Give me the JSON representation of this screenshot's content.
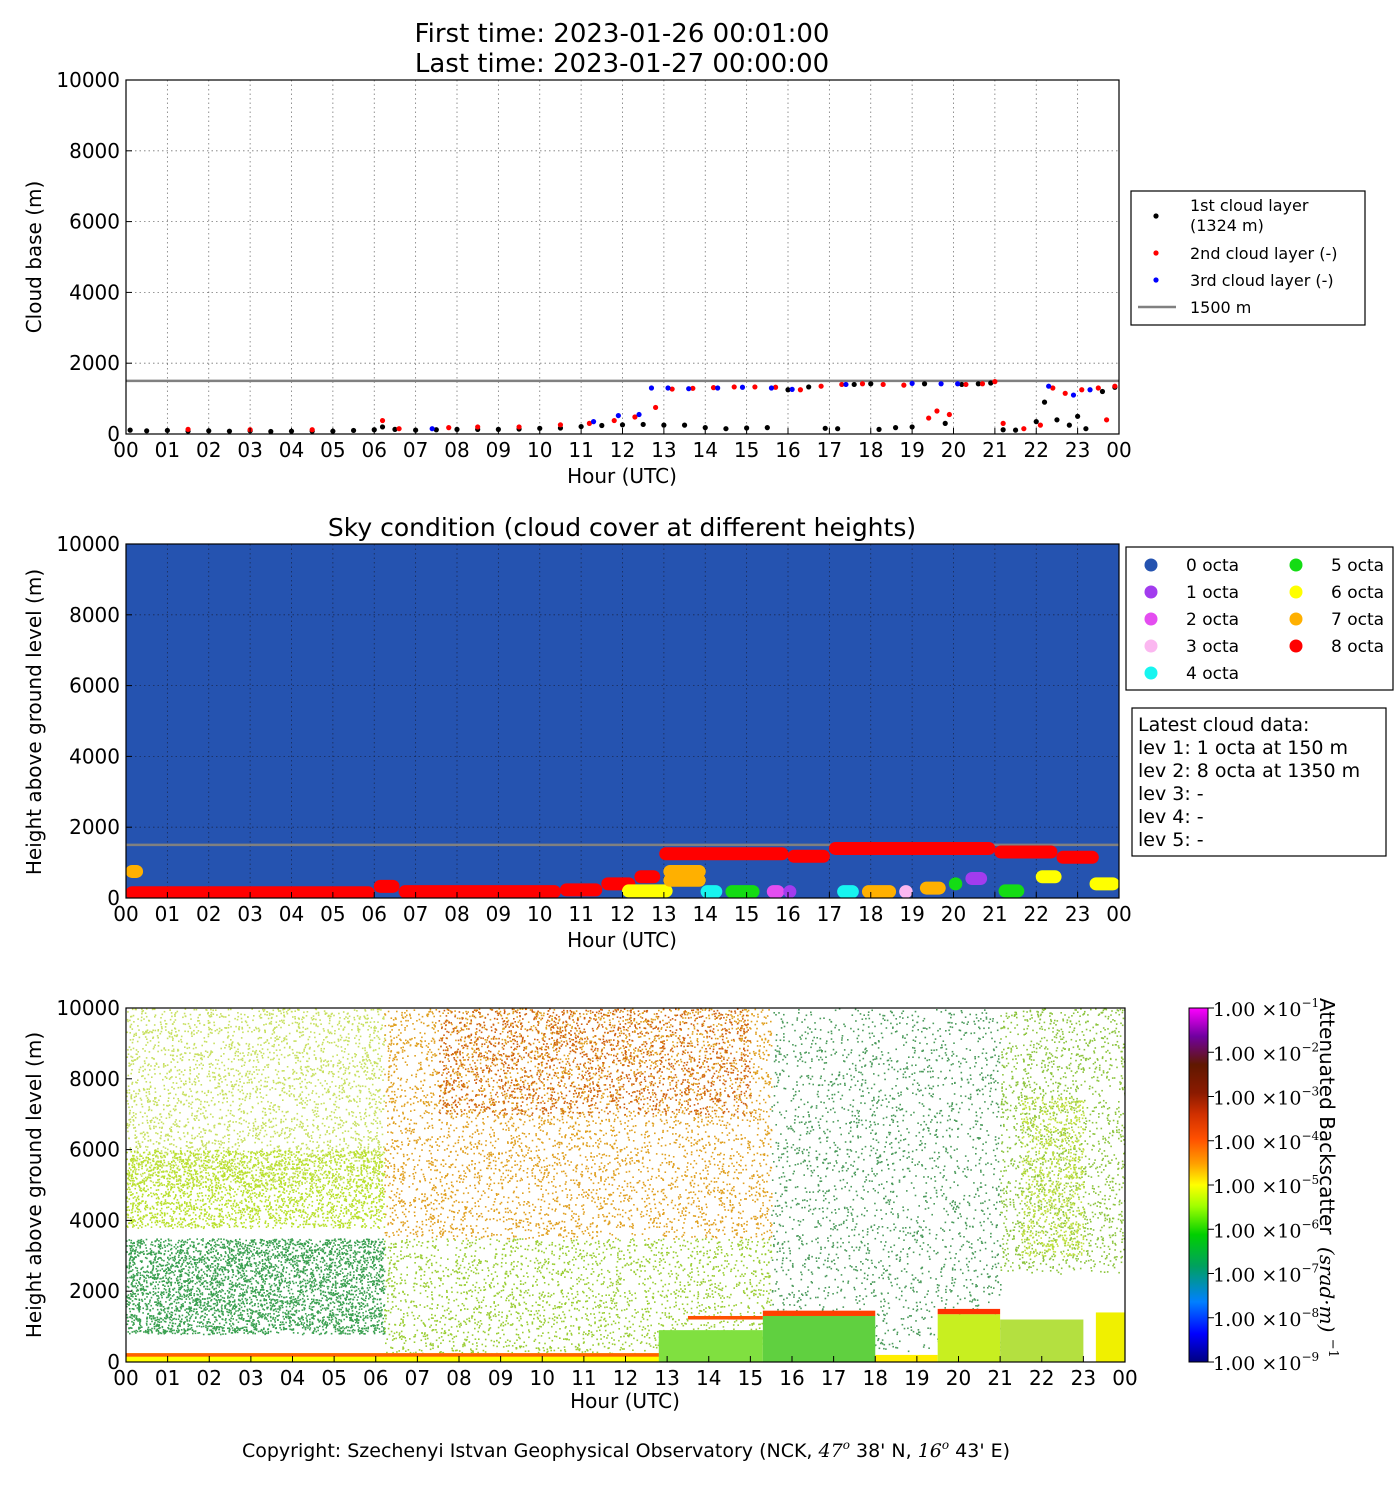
{
  "header": {
    "first_time": "First time: 2023-01-26 00:01:00",
    "last_time": "Last time: 2023-01-27 00:00:00"
  },
  "hour_ticks": [
    "00",
    "01",
    "02",
    "03",
    "04",
    "05",
    "06",
    "07",
    "08",
    "09",
    "10",
    "11",
    "12",
    "13",
    "14",
    "15",
    "16",
    "17",
    "18",
    "19",
    "20",
    "21",
    "22",
    "23",
    "00"
  ],
  "copyright": {
    "prefix": "Copyright: Szechenyi Istvan Geophysical Observatory (NCK, ",
    "lat_deg": "47",
    "lat_rest": " 38' N, ",
    "lon_deg": "16",
    "lon_rest": " 43' E)",
    "degree_mark": "o"
  },
  "colors": {
    "first_layer": "#000000",
    "second_layer": "#ff0000",
    "third_layer": "#0000ff",
    "threshold_line": "#808080",
    "sky_background": "#2553b0",
    "octa": [
      "#2553b0",
      "#a23cee",
      "#e44df0",
      "#fbb7f0",
      "#17f5f0",
      "#14dc14",
      "#ffff00",
      "#ffb000",
      "#ff0000"
    ]
  },
  "chart_data": [
    {
      "type": "scatter",
      "title": "",
      "xlabel": "Hour (UTC)",
      "ylabel": "Cloud base (m)",
      "xlim": [
        0,
        24
      ],
      "ylim": [
        0,
        10000
      ],
      "yticks": [
        0,
        2000,
        4000,
        6000,
        8000,
        10000
      ],
      "grid": true,
      "legend_position": "right",
      "reference_line": {
        "y": 1500,
        "label": "1500 m"
      },
      "series": [
        {
          "name": "1st cloud layer",
          "name_note": "(1324 m)",
          "points": [
            [
              0.1,
              110
            ],
            [
              0.5,
              90
            ],
            [
              1.0,
              100
            ],
            [
              1.5,
              80
            ],
            [
              2.0,
              90
            ],
            [
              2.5,
              80
            ],
            [
              3.0,
              90
            ],
            [
              3.5,
              70
            ],
            [
              4.0,
              80
            ],
            [
              4.5,
              80
            ],
            [
              5.0,
              80
            ],
            [
              5.5,
              100
            ],
            [
              6.0,
              120
            ],
            [
              6.2,
              200
            ],
            [
              6.5,
              130
            ],
            [
              7.0,
              110
            ],
            [
              7.5,
              120
            ],
            [
              8.0,
              130
            ],
            [
              8.5,
              130
            ],
            [
              9.0,
              130
            ],
            [
              9.5,
              140
            ],
            [
              10.0,
              160
            ],
            [
              10.5,
              170
            ],
            [
              11.0,
              210
            ],
            [
              11.5,
              240
            ],
            [
              12.0,
              260
            ],
            [
              12.5,
              270
            ],
            [
              13.0,
              250
            ],
            [
              13.5,
              250
            ],
            [
              14.0,
              180
            ],
            [
              14.5,
              150
            ],
            [
              15.0,
              170
            ],
            [
              15.5,
              180
            ],
            [
              16.0,
              1250
            ],
            [
              16.5,
              1330
            ],
            [
              16.9,
              160
            ],
            [
              17.2,
              150
            ],
            [
              17.6,
              1400
            ],
            [
              18.0,
              1420
            ],
            [
              18.2,
              130
            ],
            [
              18.6,
              180
            ],
            [
              19.0,
              200
            ],
            [
              19.3,
              1420
            ],
            [
              19.8,
              300
            ],
            [
              20.2,
              1400
            ],
            [
              20.6,
              1420
            ],
            [
              20.9,
              1440
            ],
            [
              21.2,
              120
            ],
            [
              21.5,
              110
            ],
            [
              22.0,
              350
            ],
            [
              22.2,
              900
            ],
            [
              22.5,
              400
            ],
            [
              22.8,
              250
            ],
            [
              23.0,
              500
            ],
            [
              23.2,
              150
            ],
            [
              23.6,
              1200
            ],
            [
              23.9,
              1320
            ]
          ]
        },
        {
          "name": "2nd cloud layer (-)",
          "points": [
            [
              1.5,
              130
            ],
            [
              3.0,
              120
            ],
            [
              4.5,
              120
            ],
            [
              6.2,
              380
            ],
            [
              6.6,
              150
            ],
            [
              7.8,
              180
            ],
            [
              8.5,
              200
            ],
            [
              9.5,
              200
            ],
            [
              10.5,
              260
            ],
            [
              11.2,
              300
            ],
            [
              11.8,
              380
            ],
            [
              12.3,
              480
            ],
            [
              12.8,
              750
            ],
            [
              13.2,
              1270
            ],
            [
              13.7,
              1290
            ],
            [
              14.2,
              1310
            ],
            [
              14.7,
              1330
            ],
            [
              15.2,
              1330
            ],
            [
              15.7,
              1320
            ],
            [
              16.3,
              1250
            ],
            [
              16.8,
              1350
            ],
            [
              17.3,
              1400
            ],
            [
              17.8,
              1420
            ],
            [
              18.3,
              1400
            ],
            [
              18.8,
              1380
            ],
            [
              19.4,
              450
            ],
            [
              19.6,
              650
            ],
            [
              19.9,
              550
            ],
            [
              20.3,
              1400
            ],
            [
              20.7,
              1420
            ],
            [
              21.0,
              1480
            ],
            [
              21.2,
              300
            ],
            [
              21.7,
              150
            ],
            [
              22.1,
              250
            ],
            [
              22.4,
              1300
            ],
            [
              22.7,
              1150
            ],
            [
              23.1,
              1250
            ],
            [
              23.5,
              1300
            ],
            [
              23.7,
              400
            ],
            [
              23.9,
              1350
            ]
          ]
        },
        {
          "name": "3rd cloud layer (-)",
          "points": [
            [
              7.4,
              150
            ],
            [
              11.3,
              350
            ],
            [
              11.9,
              520
            ],
            [
              12.4,
              550
            ],
            [
              12.7,
              1300
            ],
            [
              13.1,
              1300
            ],
            [
              13.6,
              1280
            ],
            [
              14.3,
              1300
            ],
            [
              14.9,
              1320
            ],
            [
              15.6,
              1300
            ],
            [
              16.1,
              1260
            ],
            [
              17.4,
              1400
            ],
            [
              19.0,
              1430
            ],
            [
              19.7,
              1420
            ],
            [
              20.1,
              1420
            ],
            [
              22.3,
              1350
            ],
            [
              22.9,
              1100
            ],
            [
              23.3,
              1250
            ]
          ]
        }
      ]
    },
    {
      "type": "scatter",
      "title": "Sky condition (cloud cover at different heights)",
      "xlabel": "Hour (UTC)",
      "ylabel": "Height above ground level (m)",
      "xlim": [
        0,
        24
      ],
      "ylim": [
        0,
        10000
      ],
      "yticks": [
        0,
        2000,
        4000,
        6000,
        8000,
        10000
      ],
      "grid": true,
      "reference_line": {
        "y": 1500
      },
      "legend_position": "right",
      "legend": [
        "0 octa",
        "1 octa",
        "2 octa",
        "3 octa",
        "4 octa",
        "5 octa",
        "6 octa",
        "7 octa",
        "8 octa"
      ],
      "octa_bands": [
        {
          "octa": 8,
          "x_start": 0.0,
          "x_end": 6.0,
          "y": 150
        },
        {
          "octa": 8,
          "x_start": 6.0,
          "x_end": 6.6,
          "y": 330
        },
        {
          "octa": 8,
          "x_start": 6.6,
          "x_end": 10.5,
          "y": 180
        },
        {
          "octa": 8,
          "x_start": 10.5,
          "x_end": 11.5,
          "y": 230
        },
        {
          "octa": 8,
          "x_start": 11.5,
          "x_end": 12.3,
          "y": 400
        },
        {
          "octa": 8,
          "x_start": 12.3,
          "x_end": 12.9,
          "y": 600
        },
        {
          "octa": 8,
          "x_start": 12.9,
          "x_end": 16.0,
          "y": 1250
        },
        {
          "octa": 8,
          "x_start": 16.0,
          "x_end": 17.0,
          "y": 1180
        },
        {
          "octa": 8,
          "x_start": 17.0,
          "x_end": 21.0,
          "y": 1400
        },
        {
          "octa": 8,
          "x_start": 21.0,
          "x_end": 22.5,
          "y": 1300
        },
        {
          "octa": 8,
          "x_start": 22.5,
          "x_end": 23.5,
          "y": 1150
        },
        {
          "octa": 7,
          "x_start": 0.0,
          "x_end": 0.4,
          "y": 750
        },
        {
          "octa": 6,
          "x_start": 12.0,
          "x_end": 13.2,
          "y": 200
        },
        {
          "octa": 7,
          "x_start": 13.0,
          "x_end": 14.0,
          "y": 500
        },
        {
          "octa": 7,
          "x_start": 13.0,
          "x_end": 14.0,
          "y": 750
        },
        {
          "octa": 4,
          "x_start": 13.9,
          "x_end": 14.4,
          "y": 180
        },
        {
          "octa": 5,
          "x_start": 14.5,
          "x_end": 15.3,
          "y": 180
        },
        {
          "octa": 2,
          "x_start": 15.5,
          "x_end": 15.9,
          "y": 180
        },
        {
          "octa": 1,
          "x_start": 15.9,
          "x_end": 16.1,
          "y": 180
        },
        {
          "octa": 4,
          "x_start": 17.2,
          "x_end": 17.7,
          "y": 180
        },
        {
          "octa": 7,
          "x_start": 17.8,
          "x_end": 18.6,
          "y": 180
        },
        {
          "octa": 3,
          "x_start": 18.7,
          "x_end": 19.0,
          "y": 180
        },
        {
          "octa": 7,
          "x_start": 19.2,
          "x_end": 19.8,
          "y": 280
        },
        {
          "octa": 5,
          "x_start": 19.9,
          "x_end": 20.2,
          "y": 400
        },
        {
          "octa": 1,
          "x_start": 20.3,
          "x_end": 20.8,
          "y": 550
        },
        {
          "octa": 5,
          "x_start": 21.1,
          "x_end": 21.7,
          "y": 200
        },
        {
          "octa": 6,
          "x_start": 22.0,
          "x_end": 22.6,
          "y": 600
        },
        {
          "octa": 6,
          "x_start": 23.3,
          "x_end": 24.0,
          "y": 400
        }
      ],
      "info_box": {
        "title": "Latest cloud data:",
        "lines": [
          "lev 1: 1 octa at 150 m",
          "lev 2: 8 octa at 1350 m",
          "lev 3: -",
          "lev 4: -",
          "lev 5: -"
        ]
      }
    },
    {
      "type": "heatmap",
      "title": "",
      "xlabel": "Hour (UTC)",
      "ylabel": "Height above ground level (m)",
      "xlim": [
        0,
        24
      ],
      "ylim": [
        0,
        10000
      ],
      "yticks": [
        0,
        2000,
        4000,
        6000,
        8000,
        10000
      ],
      "colorbar": {
        "label": "Attenuated Backscatter",
        "units": "(srad·m)",
        "units_exponent": "−1",
        "scale": "log",
        "range": [
          1e-09,
          0.1
        ],
        "tick_mantissa": "1.00 ×10",
        "tick_exponents": [
          "−9",
          "−8",
          "−7",
          "−6",
          "−5",
          "−4",
          "−3",
          "−2",
          "−1"
        ],
        "colors": [
          "#000080",
          "#0000ff",
          "#0080ff",
          "#00a060",
          "#00d000",
          "#a0ff00",
          "#ffff00",
          "#ffa000",
          "#ff5000",
          "#d03000",
          "#8b1a00",
          "#601800",
          "#7000a0",
          "#b000e0",
          "#ff00ff"
        ]
      }
    }
  ]
}
